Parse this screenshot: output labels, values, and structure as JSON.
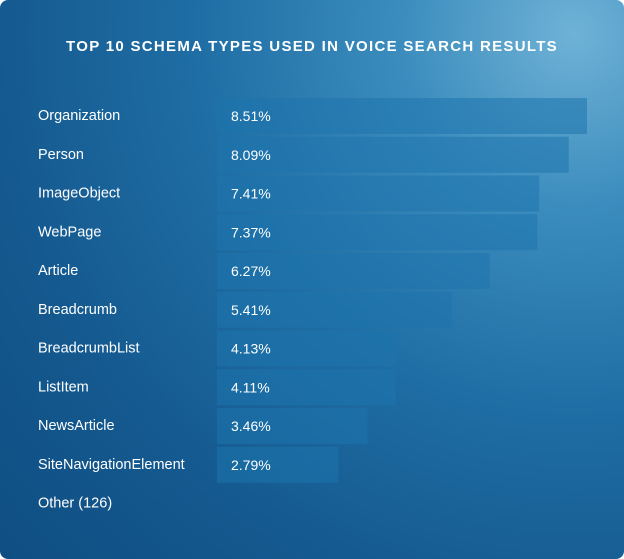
{
  "chart_data": {
    "type": "bar",
    "orientation": "horizontal",
    "title": "TOP 10 SCHEMA TYPES USED IN VOICE SEARCH RESULTS",
    "categories": [
      "Organization",
      "Person",
      "ImageObject",
      "WebPage",
      "Article",
      "Breadcrumb",
      "BreadcrumbList",
      "ListItem",
      "NewsArticle",
      "SiteNavigationElement",
      "Other (126)"
    ],
    "values": [
      8.51,
      8.09,
      7.41,
      7.37,
      6.27,
      5.41,
      4.13,
      4.11,
      3.46,
      2.79,
      null
    ],
    "value_labels": [
      "8.51%",
      "8.09%",
      "7.41%",
      "7.37%",
      "6.27%",
      "5.41%",
      "4.13%",
      "4.11%",
      "3.46%",
      "2.79%",
      ""
    ],
    "unit": "%",
    "xlim": [
      0,
      8.51
    ],
    "grid": false,
    "legend": "none"
  },
  "colors": {
    "background_dark": "#0f4e82",
    "background_light": "#6fb2d6",
    "bar": "#1e74ad",
    "text": "#ffffff"
  }
}
